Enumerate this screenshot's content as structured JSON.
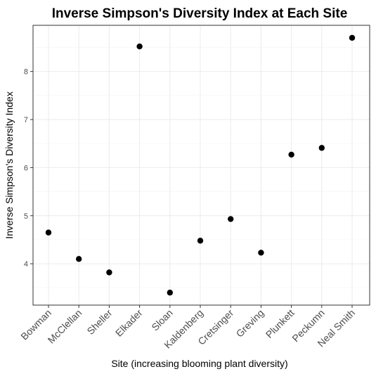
{
  "chart_data": {
    "type": "scatter",
    "title": "Inverse Simpson's Diversity Index at Each Site",
    "xlabel": "Site (increasing blooming plant diversity)",
    "ylabel": "Inverse Simpson's Diversity Index",
    "categories": [
      "Bowman",
      "McClellan",
      "Sheller",
      "Elkader",
      "Sloan",
      "Kaldenberg",
      "Cretsinger",
      "Greving",
      "Plunkett",
      "Peckumn",
      "Neal Smith"
    ],
    "values": [
      4.65,
      4.1,
      3.82,
      8.52,
      3.4,
      4.48,
      4.93,
      4.23,
      6.27,
      6.41,
      8.7
    ],
    "yticks": [
      4,
      5,
      6,
      7,
      8
    ],
    "ylim": [
      3.14,
      8.96
    ],
    "grid": true,
    "legend": "none"
  }
}
